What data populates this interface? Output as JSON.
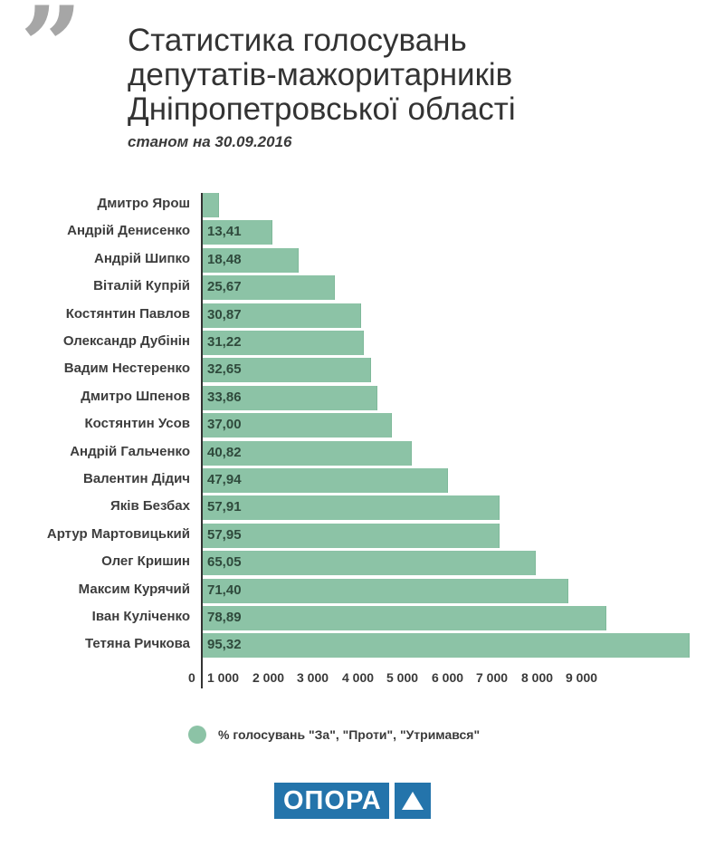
{
  "header": {
    "quote_icon": "quote-mark-icon",
    "title_lines": [
      "Статистика голосувань",
      "депутатів-мажоритарників",
      "Дніпропетровської області"
    ],
    "subtitle": "станом на  30.09.2016"
  },
  "chart_data": {
    "type": "bar",
    "orientation": "horizontal",
    "title": "Статистика голосувань депутатів-мажоритарників Дніпропетровської області",
    "subtitle": "станом на 30.09.2016",
    "xlabel": "",
    "ylabel": "",
    "xlim": [
      0,
      11000
    ],
    "x_ticks": [
      "0",
      "1 000",
      "2 000",
      "3 000",
      "4 000",
      "5 000",
      "6 000",
      "7 000",
      "8 000",
      "9 000"
    ],
    "grid": false,
    "legend_position": "bottom",
    "categories": [
      "Дмитро Ярош",
      "Андрій Денисенко",
      "Андрій Шипко",
      "Віталій Купрій",
      "Костянтин Павлов",
      "Олександр Дубінін",
      "Вадим Нестеренко",
      "Дмитро Шпенов",
      "Костянтин Усов",
      "Андрій Гальченко",
      "Валентин Дідич",
      "Яків Безбах",
      "Артур Мартовицький",
      "Олег Кришин",
      "Максим Курячий",
      "Іван Куліченко",
      "Тетяна Ричкова"
    ],
    "series": [
      {
        "name": "% голосувань \"За\", \"Проти\", \"Утримався\"",
        "color": "#8cc3a6",
        "values": [
          340,
          1540,
          2120,
          2930,
          3520,
          3580,
          3740,
          3880,
          4200,
          4650,
          5450,
          6610,
          6610,
          7410,
          8140,
          8990,
          10850
        ],
        "data_labels": [
          "",
          "13,41",
          "18,48",
          "25,67",
          "30,87",
          "31,22",
          "32,65",
          "33,86",
          "37,00",
          "40,82",
          "47,94",
          "57,91",
          "57,95",
          "65,05",
          "71,40",
          "78,89",
          "95,32"
        ]
      }
    ]
  },
  "legend": {
    "items": [
      {
        "label": "% голосувань \"За\", \"Проти\", \"Утримався\"",
        "color": "#8cc3a6"
      }
    ]
  },
  "logo": {
    "text": "ОПОРА",
    "icon": "triangle-icon",
    "color": "#2474ab"
  }
}
